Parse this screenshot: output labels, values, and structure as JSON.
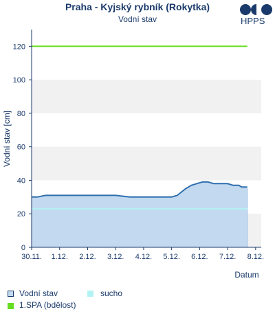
{
  "header": {
    "title": "Praha - Kyjský rybník (Rokytka)",
    "subtitle": "Vodní stav",
    "logo_text": "HPPS"
  },
  "legend": {
    "items": [
      {
        "label": "Vodní stav",
        "color": "#c2d9ef",
        "border": "#1a3a6b"
      },
      {
        "label": "sucho",
        "color": "#b3f2f2",
        "border": "#b3f2f2"
      },
      {
        "label": "1.SPA (bdělost)",
        "color": "#66dd22",
        "border": "#66dd22"
      }
    ]
  },
  "chart_data": {
    "type": "area",
    "title": "Praha - Kyjský rybník (Rokytka)",
    "subtitle": "Vodní stav",
    "xlabel": "Datum",
    "ylabel": "Vodní stav [cm]",
    "ylim": [
      0,
      130
    ],
    "yticks": [
      0,
      20,
      40,
      60,
      80,
      100,
      120
    ],
    "xlim": [
      0,
      8.2
    ],
    "xticks": [
      {
        "label": "30.11.",
        "value": 0
      },
      {
        "label": "1.12.",
        "value": 1
      },
      {
        "label": "2.12.",
        "value": 2
      },
      {
        "label": "3.12.",
        "value": 3
      },
      {
        "label": "4.12.",
        "value": 4
      },
      {
        "label": "5.12.",
        "value": 5
      },
      {
        "label": "6.12.",
        "value": 6
      },
      {
        "label": "7.12.",
        "value": 7
      },
      {
        "label": "8.12.",
        "value": 8
      }
    ],
    "grid": "horizontal bands",
    "series": [
      {
        "name": "Vodní stav",
        "color": "#2f6fae",
        "fill": "#c2d9ef",
        "x": [
          0,
          0.2,
          0.5,
          1.0,
          1.5,
          2.0,
          2.5,
          3.0,
          3.5,
          4.0,
          4.5,
          5.0,
          5.2,
          5.35,
          5.5,
          5.7,
          5.9,
          6.1,
          6.3,
          6.5,
          6.7,
          7.0,
          7.2,
          7.4,
          7.5,
          7.7
        ],
        "values": [
          30,
          30,
          31,
          31,
          31,
          31,
          31,
          31,
          30,
          30,
          30,
          30,
          31,
          33,
          35,
          37,
          38,
          39,
          39,
          38,
          38,
          38,
          37,
          37,
          36,
          36
        ]
      },
      {
        "name": "sucho",
        "color": "#b3f2f2",
        "x": [
          0,
          7.7
        ],
        "values": [
          23,
          23
        ]
      },
      {
        "name": "1.SPA (bdělost)",
        "color": "#66dd22",
        "x": [
          0,
          7.7
        ],
        "values": [
          120,
          120
        ]
      }
    ]
  }
}
